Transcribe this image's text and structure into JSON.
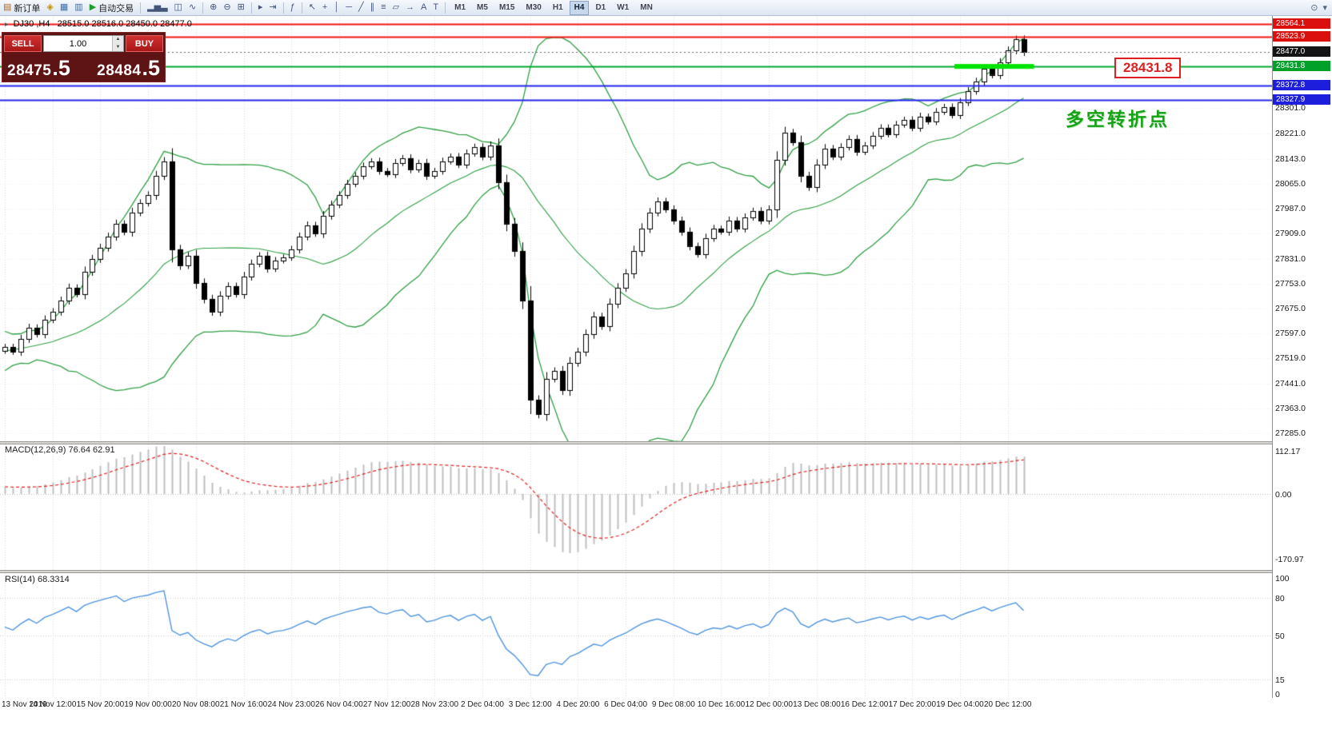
{
  "toolbar": {
    "groups": [
      [
        {
          "name": "new-order-button",
          "glyph": "▤",
          "glyph_color": "#b5651d",
          "label": "新订单"
        },
        {
          "name": "layouts-icon",
          "glyph": "◈",
          "glyph_color": "#c79200"
        },
        {
          "name": "charts-grid-icon",
          "glyph": "▦",
          "glyph_color": "#3a6ea5"
        },
        {
          "name": "terminal-window-icon",
          "glyph": "▥",
          "glyph_color": "#3a6ea5"
        },
        {
          "name": "auto-trading-button",
          "glyph": "▶",
          "glyph_color": "#1f9d2f",
          "label": "自动交易"
        }
      ],
      [
        {
          "name": "bar-chart-icon",
          "glyph": "▂▅▃"
        },
        {
          "name": "candlestick-chart-icon",
          "glyph": "◫"
        },
        {
          "name": "line-chart-icon",
          "glyph": "∿"
        }
      ],
      [
        {
          "name": "zoom-in-icon",
          "glyph": "⊕"
        },
        {
          "name": "zoom-out-icon",
          "glyph": "⊖"
        },
        {
          "name": "tile-windows-icon",
          "glyph": "⊞"
        }
      ],
      [
        {
          "name": "auto-scroll-icon",
          "glyph": "▸"
        },
        {
          "name": "chart-shift-icon",
          "glyph": "⇥"
        }
      ],
      [
        {
          "name": "indicators-icon",
          "glyph": "ƒ"
        }
      ],
      [
        {
          "name": "cursor-icon",
          "glyph": "↖"
        },
        {
          "name": "crosshair-icon",
          "glyph": "+"
        },
        {
          "name": "vertical-line-icon",
          "glyph": "│"
        },
        {
          "name": "horizontal-line-icon",
          "glyph": "─"
        },
        {
          "name": "trendline-icon",
          "glyph": "╱"
        },
        {
          "name": "channel-icon",
          "glyph": "∥"
        },
        {
          "name": "fibonacci-icon",
          "glyph": "≡"
        },
        {
          "name": "shapes-icon",
          "glyph": "▱"
        },
        {
          "name": "arrow-tools-icon",
          "glyph": "→"
        },
        {
          "name": "text-icon",
          "glyph": "A"
        },
        {
          "name": "text-label-icon",
          "glyph": "T"
        }
      ]
    ],
    "timeframes": [
      "M1",
      "M5",
      "M15",
      "M30",
      "H1",
      "H4",
      "D1",
      "W1",
      "MN"
    ],
    "active_timeframe": "H4",
    "right_icons": [
      {
        "name": "magnifier-icon",
        "glyph": "⊙"
      },
      {
        "name": "chevron-down-icon",
        "glyph": "▾"
      }
    ]
  },
  "chart_info": {
    "marker": "▸",
    "symbol_period": "DJ30 ,H4",
    "ohlc": "28515.0 28516.0 28450.0 28477.0"
  },
  "order_panel": {
    "sell_label": "SELL",
    "buy_label": "BUY",
    "volume": "1.00",
    "sell_price": "28475",
    "sell_price_fraction": ".5",
    "buy_price": "28484",
    "buy_price_fraction": ".5"
  },
  "annotations": {
    "support_price_label": "28431.8",
    "turning_point_text": "多空转折点"
  },
  "chart_data": {
    "type": "candlestick",
    "symbol": "DJ30",
    "period": "H4",
    "view": {
      "price_top": 28592,
      "price_bottom": 27260
    },
    "pre_closes": [
      27480,
      27460,
      27500,
      27520,
      27490,
      27530,
      27550,
      27520,
      27560,
      27540,
      27570,
      27555,
      27590,
      27570,
      27545,
      27560,
      27535,
      27575,
      27550,
      27565
    ],
    "closes": [
      27555,
      27540,
      27580,
      27615,
      27595,
      27640,
      27665,
      27700,
      27740,
      27720,
      27790,
      27830,
      27865,
      27900,
      27940,
      27915,
      27975,
      28005,
      28030,
      28090,
      28135,
      27860,
      27810,
      27840,
      27755,
      27705,
      27665,
      27715,
      27745,
      27720,
      27775,
      27815,
      27840,
      27800,
      27825,
      27835,
      27860,
      27900,
      27935,
      27910,
      27965,
      28000,
      28030,
      28065,
      28090,
      28120,
      28135,
      28105,
      28095,
      28130,
      28145,
      28110,
      28130,
      28090,
      28105,
      28135,
      28150,
      28125,
      28160,
      28180,
      28150,
      28185,
      28070,
      27940,
      27855,
      27700,
      27390,
      27345,
      27455,
      27480,
      27420,
      27505,
      27540,
      27595,
      27650,
      27620,
      27690,
      27740,
      27785,
      27855,
      27925,
      27975,
      28010,
      27985,
      27950,
      27915,
      27870,
      27845,
      27895,
      27925,
      27915,
      27950,
      27925,
      27960,
      27980,
      27950,
      27985,
      28140,
      28225,
      28195,
      28090,
      28055,
      28125,
      28175,
      28150,
      28180,
      28205,
      28165,
      28185,
      28215,
      28240,
      28220,
      28250,
      28265,
      28240,
      28275,
      28260,
      28290,
      28305,
      28280,
      28320,
      28355,
      28385,
      28425,
      28405,
      28445,
      28482,
      28516,
      28477
    ],
    "bollinger": {
      "period": 20,
      "deviation": 2,
      "color": "#2f9e44"
    },
    "price_axis_ticks": [
      28301.0,
      28221.0,
      28143.0,
      28065.0,
      27987.0,
      27909.0,
      27831.0,
      27753.0,
      27675.0,
      27597.0,
      27519.0,
      27441.0,
      27363.0,
      27285.0
    ],
    "price_lines": [
      {
        "price": 28564.1,
        "line_color": "#f01414",
        "badge_bg": "#dc0f0f",
        "width": 2
      },
      {
        "price": 28523.9,
        "line_color": "#f01414",
        "badge_bg": "#dc0f0f",
        "width": 2
      },
      {
        "price": 28477.0,
        "style": "dotted",
        "badge_bg": "#141414"
      },
      {
        "price": 28431.8,
        "line_color": "#00a82d",
        "badge_bg": "#00a02a",
        "width": 2
      },
      {
        "price": 28372.8,
        "line_color": "#2424ec",
        "badge_bg": "#1d1ddc",
        "width": 2
      },
      {
        "price": 28327.9,
        "line_color": "#2424ec",
        "badge_bg": "#1d1ddc",
        "width": 2
      }
    ],
    "highlight_segment": {
      "price": 28431.8,
      "from_index": 119.3,
      "to_index": 129.3,
      "color": "#00e400"
    },
    "time_labels": [
      "13 Nov 2019",
      "14 Nov 12:00",
      "15 Nov 20:00",
      "19 Nov 00:00",
      "20 Nov 08:00",
      "21 Nov 16:00",
      "24 Nov 23:00",
      "26 Nov 04:00",
      "27 Nov 12:00",
      "28 Nov 23:00",
      "2 Dec 04:00",
      "3 Dec 12:00",
      "4 Dec 20:00",
      "6 Dec 04:00",
      "9 Dec 08:00",
      "10 Dec 16:00",
      "12 Dec 00:00",
      "13 Dec 08:00",
      "16 Dec 12:00",
      "17 Dec 20:00",
      "19 Dec 04:00",
      "20 Dec 12:00"
    ],
    "macd": {
      "label": "MACD(12,26,9) 76.64 62.91",
      "params": [
        12,
        26,
        9
      ],
      "axis": [
        {
          "value": 112.17,
          "text": "112.17"
        },
        {
          "value": 0,
          "text": "0.00"
        },
        {
          "value": -170.97,
          "text": "-170.97"
        }
      ],
      "range": [
        -200,
        130
      ],
      "bar_color": "#bfbfbf",
      "signal_color": "#e02020"
    },
    "rsi": {
      "label": "RSI(14) 68.3314",
      "period": 14,
      "axis": [
        {
          "value": 100,
          "text": "100"
        },
        {
          "value": 80,
          "text": "80"
        },
        {
          "value": 50,
          "text": "50"
        },
        {
          "value": 15,
          "text": "15"
        },
        {
          "value": 0,
          "text": "0"
        }
      ],
      "levels": [
        80,
        50,
        15
      ],
      "line_color": "#4f94de"
    }
  }
}
